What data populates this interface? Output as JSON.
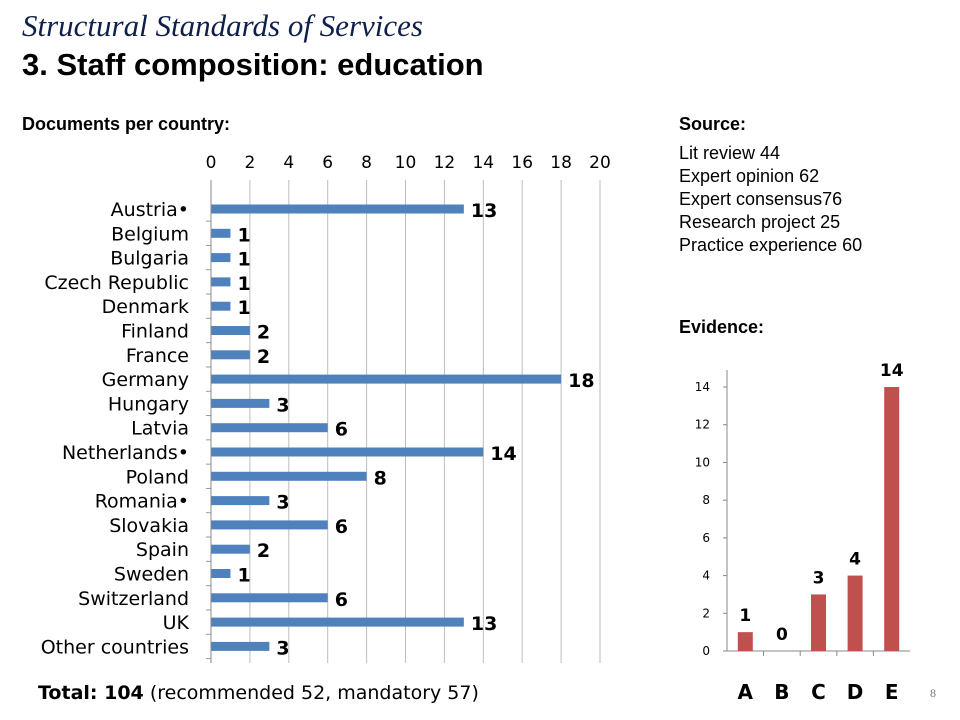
{
  "slide": {
    "title_italic": "Structural Standards of Services",
    "title_main": "3. Staff composition: education",
    "left_heading": "Documents per country:",
    "source_heading": "Source:",
    "evidence_heading": "Evidence:",
    "sources": [
      "Lit review 44",
      "Expert opinion 62",
      "Expert consensus76",
      "Research project 25",
      "Practice experience 60"
    ],
    "total_label": "Total: 104",
    "total_detail": " (recommended 52, mandatory 57)",
    "page_number": "8"
  },
  "chart_data": [
    {
      "type": "bar",
      "orientation": "horizontal",
      "categories": [
        "Austria•",
        "Belgium",
        "Bulgaria",
        "Czech Republic",
        "Denmark",
        "Finland",
        "France",
        "Germany",
        "Hungary",
        "Latvia",
        "Netherlands•",
        "Poland",
        "Romania•",
        "Slovakia",
        "Spain",
        "Sweden",
        "Switzerland",
        "UK",
        "Other countries"
      ],
      "values": [
        13,
        1,
        1,
        1,
        1,
        2,
        2,
        18,
        3,
        6,
        14,
        8,
        3,
        6,
        2,
        1,
        6,
        13,
        3
      ],
      "xlim": [
        0,
        20
      ],
      "ticks": [
        0,
        2,
        4,
        6,
        8,
        10,
        12,
        14,
        16,
        18,
        20
      ],
      "axis_position": "top",
      "grid": true,
      "color": "#4f81bd",
      "data_labels": true
    },
    {
      "type": "bar",
      "categories": [
        "A",
        "B",
        "C",
        "D",
        "E"
      ],
      "values": [
        1,
        0,
        3,
        4,
        14
      ],
      "ylim": [
        0,
        14
      ],
      "ticks": [
        0,
        2,
        4,
        6,
        8,
        10,
        12,
        14
      ],
      "grid": false,
      "color": "#c0504d",
      "data_labels": true
    }
  ]
}
